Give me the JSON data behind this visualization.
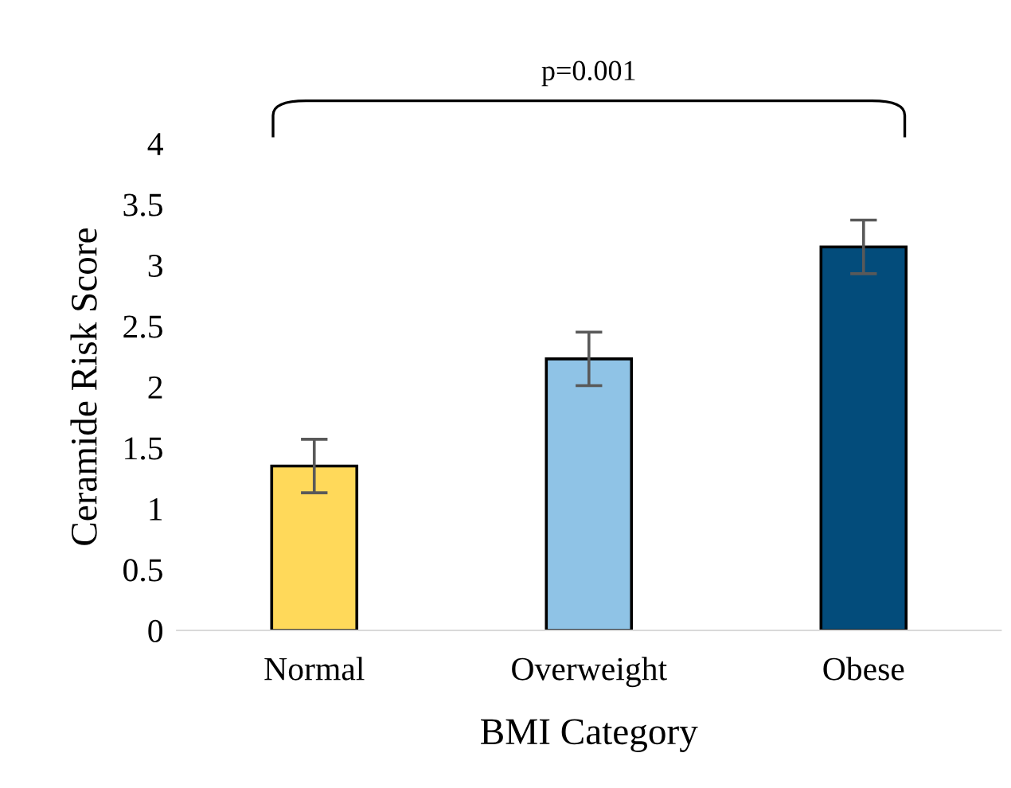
{
  "chart_data": {
    "type": "bar",
    "xlabel": "BMI Category",
    "ylabel": "Ceramide Risk Score",
    "categories": [
      "Normal",
      "Overweight",
      "Obese"
    ],
    "values": [
      1.35,
      2.23,
      3.15
    ],
    "errors": [
      0.22,
      0.22,
      0.22
    ],
    "colors": [
      "#ffd95a",
      "#8fc3e6",
      "#034c7b"
    ],
    "ylim": [
      0,
      4
    ],
    "yticks": [
      0,
      0.5,
      1,
      1.5,
      2,
      2.5,
      3,
      3.5,
      4
    ],
    "grid": false,
    "legend": false,
    "annotations": [
      "p=0.001"
    ]
  }
}
